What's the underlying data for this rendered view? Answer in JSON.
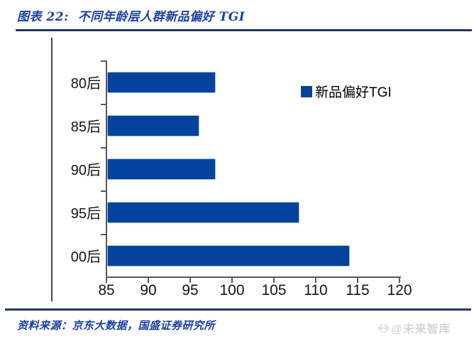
{
  "header": {
    "title": "图表 22:  不同年龄层人群新品偏好 TGI"
  },
  "chart_data": {
    "type": "bar",
    "orientation": "horizontal",
    "title": "不同年龄层人群新品偏好 TGI",
    "categories": [
      "80后",
      "85后",
      "90后",
      "95后",
      "00后"
    ],
    "values": [
      98,
      96,
      98,
      108,
      114
    ],
    "series_name": "新品偏好TGI",
    "xlim": [
      85,
      120
    ],
    "xticks": [
      85,
      90,
      95,
      100,
      105,
      110,
      115,
      120
    ],
    "grid": false,
    "legend_position": "inside-upper-right",
    "bar_color": "#04439c",
    "bar_edge_color": "#9dc3e6"
  },
  "legend": {
    "label": "新品偏好TGI",
    "swatch_color": "#04439c"
  },
  "footer": {
    "source": "资料来源：京东大数据，国盛证券研究所",
    "watermark": "@未来智库",
    "watermark_icon": "paw-icon"
  },
  "colors": {
    "accent_blue": "#1b3fa3",
    "rule_navy": "#1f3864",
    "axis_gray": "#595959",
    "bar_blue": "#04439c",
    "bar_edge": "#9dc3e6",
    "watermark_gray": "#d6d6d6"
  }
}
